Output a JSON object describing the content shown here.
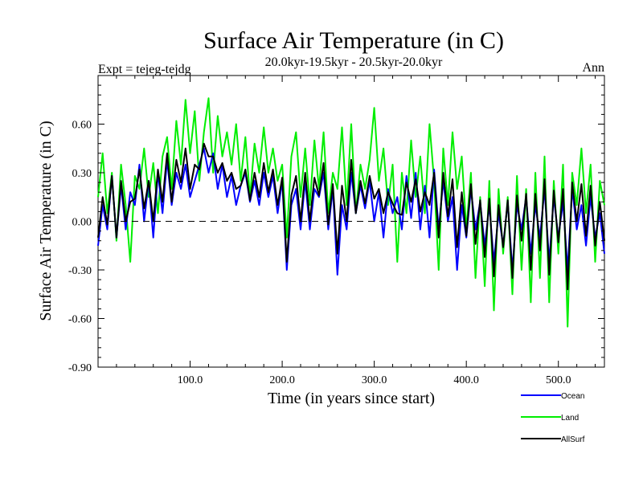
{
  "chart_data": {
    "type": "line",
    "title": "Surface Air Temperature (in C)",
    "subtitle": "20.0kyr-19.5kyr - 20.5kyr-20.0kyr",
    "left_label": "Expt = tejeg-tejdg",
    "right_label": "Ann",
    "xlabel": "Time (in years since start)",
    "ylabel": "Surface Air Temperature (in C)",
    "xlim": [
      0,
      550
    ],
    "ylim": [
      -0.9,
      0.9
    ],
    "x_ticks": [
      100,
      200,
      300,
      400,
      500
    ],
    "x_tick_labels": [
      "100.0",
      "200.0",
      "300.0",
      "400.0",
      "500.0"
    ],
    "y_ticks": [
      -0.9,
      -0.6,
      -0.3,
      0.0,
      0.3,
      0.6
    ],
    "y_tick_labels": [
      "-0.90",
      "-0.60",
      "-0.30",
      "0.00",
      "0.30",
      "0.60"
    ],
    "zero_line": true,
    "legend_position": "below-right",
    "series": [
      {
        "name": "Land",
        "color": "#00ee00",
        "x_start": 0,
        "x_step": 5,
        "values": [
          0.15,
          0.42,
          0.05,
          0.3,
          -0.12,
          0.35,
          0.1,
          -0.25,
          0.28,
          0.2,
          0.45,
          0.15,
          0.36,
          0.05,
          0.4,
          0.52,
          0.2,
          0.62,
          0.35,
          0.75,
          0.42,
          0.68,
          0.25,
          0.55,
          0.76,
          0.3,
          0.65,
          0.4,
          0.55,
          0.35,
          0.6,
          0.25,
          0.52,
          0.15,
          0.48,
          0.3,
          0.58,
          0.3,
          0.45,
          0.25,
          0.35,
          -0.1,
          0.4,
          0.55,
          0.15,
          0.45,
          0.1,
          0.5,
          0.2,
          0.55,
          0.05,
          0.3,
          0.2,
          0.58,
          0.1,
          0.6,
          0.05,
          0.35,
          0.2,
          0.38,
          0.7,
          0.25,
          0.45,
          0.1,
          0.35,
          -0.25,
          0.3,
          0.05,
          0.5,
          0.15,
          0.4,
          0.05,
          0.6,
          0.25,
          -0.3,
          0.45,
          0.1,
          0.55,
          0.2,
          0.4,
          -0.05,
          0.3,
          -0.35,
          0.15,
          -0.4,
          0.25,
          -0.55,
          0.2,
          -0.2,
          0.15,
          -0.45,
          0.28,
          -0.3,
          0.2,
          -0.5,
          0.3,
          -0.35,
          0.4,
          -0.5,
          0.25,
          -0.2,
          0.35,
          -0.65,
          0.3,
          0.1,
          0.45,
          0.05,
          0.35,
          -0.25,
          0.25,
          0.1
        ]
      },
      {
        "name": "Ocean",
        "color": "#0000ff",
        "x_start": 0,
        "x_step": 5,
        "values": [
          -0.15,
          0.1,
          -0.05,
          0.28,
          -0.1,
          0.22,
          -0.05,
          0.18,
          0.1,
          0.35,
          0.0,
          0.25,
          -0.1,
          0.3,
          0.05,
          0.38,
          0.1,
          0.3,
          0.2,
          0.35,
          0.15,
          0.25,
          0.35,
          0.45,
          0.3,
          0.42,
          0.2,
          0.35,
          0.15,
          0.28,
          0.1,
          0.22,
          0.3,
          0.12,
          0.25,
          0.1,
          0.3,
          0.15,
          0.28,
          0.05,
          0.25,
          -0.3,
          0.1,
          0.2,
          -0.05,
          0.25,
          -0.05,
          0.2,
          0.15,
          0.3,
          -0.05,
          0.2,
          -0.33,
          0.1,
          -0.05,
          0.3,
          0.05,
          0.22,
          0.08,
          0.25,
          0.0,
          0.18,
          -0.1,
          0.2,
          0.05,
          0.15,
          -0.05,
          0.28,
          0.02,
          0.3,
          -0.05,
          0.22,
          -0.1,
          0.32,
          -0.05,
          0.25,
          0.0,
          0.15,
          -0.3,
          0.1,
          -0.1,
          0.2,
          -0.05,
          0.12,
          -0.15,
          0.1,
          -0.25,
          0.05,
          -0.15,
          0.12,
          -0.3,
          0.1,
          -0.05,
          0.15,
          -0.2,
          0.1,
          -0.1,
          0.2,
          -0.25,
          0.15,
          -0.1,
          0.12,
          -0.3,
          0.2,
          -0.05,
          0.1,
          -0.15,
          0.15,
          -0.1,
          0.05,
          -0.2
        ]
      },
      {
        "name": "AllSurf",
        "color": "#000000",
        "x_start": 0,
        "x_step": 5,
        "values": [
          -0.1,
          0.15,
          -0.02,
          0.28,
          -0.1,
          0.25,
          0.0,
          0.12,
          0.14,
          0.32,
          0.08,
          0.25,
          0.0,
          0.32,
          0.12,
          0.42,
          0.12,
          0.38,
          0.24,
          0.45,
          0.2,
          0.35,
          0.32,
          0.48,
          0.4,
          0.4,
          0.3,
          0.36,
          0.25,
          0.3,
          0.2,
          0.22,
          0.32,
          0.13,
          0.3,
          0.15,
          0.36,
          0.18,
          0.32,
          0.1,
          0.27,
          -0.25,
          0.16,
          0.28,
          0.0,
          0.3,
          0.0,
          0.27,
          0.16,
          0.36,
          -0.02,
          0.23,
          -0.2,
          0.22,
          0.0,
          0.38,
          0.05,
          0.25,
          0.11,
          0.28,
          0.14,
          0.2,
          0.05,
          0.18,
          0.11,
          0.05,
          0.04,
          0.24,
          0.12,
          0.26,
          0.06,
          0.18,
          0.1,
          0.3,
          -0.1,
          0.3,
          0.03,
          0.26,
          -0.16,
          0.18,
          -0.09,
          0.23,
          -0.14,
          0.13,
          -0.22,
          0.14,
          -0.34,
          0.1,
          -0.16,
          0.13,
          -0.35,
          0.16,
          -0.12,
          0.17,
          -0.3,
          0.17,
          -0.18,
          0.26,
          -0.33,
          0.19,
          -0.13,
          0.2,
          -0.42,
          0.24,
          0.0,
          0.23,
          -0.09,
          0.22,
          -0.15,
          0.12,
          -0.12
        ]
      }
    ]
  }
}
